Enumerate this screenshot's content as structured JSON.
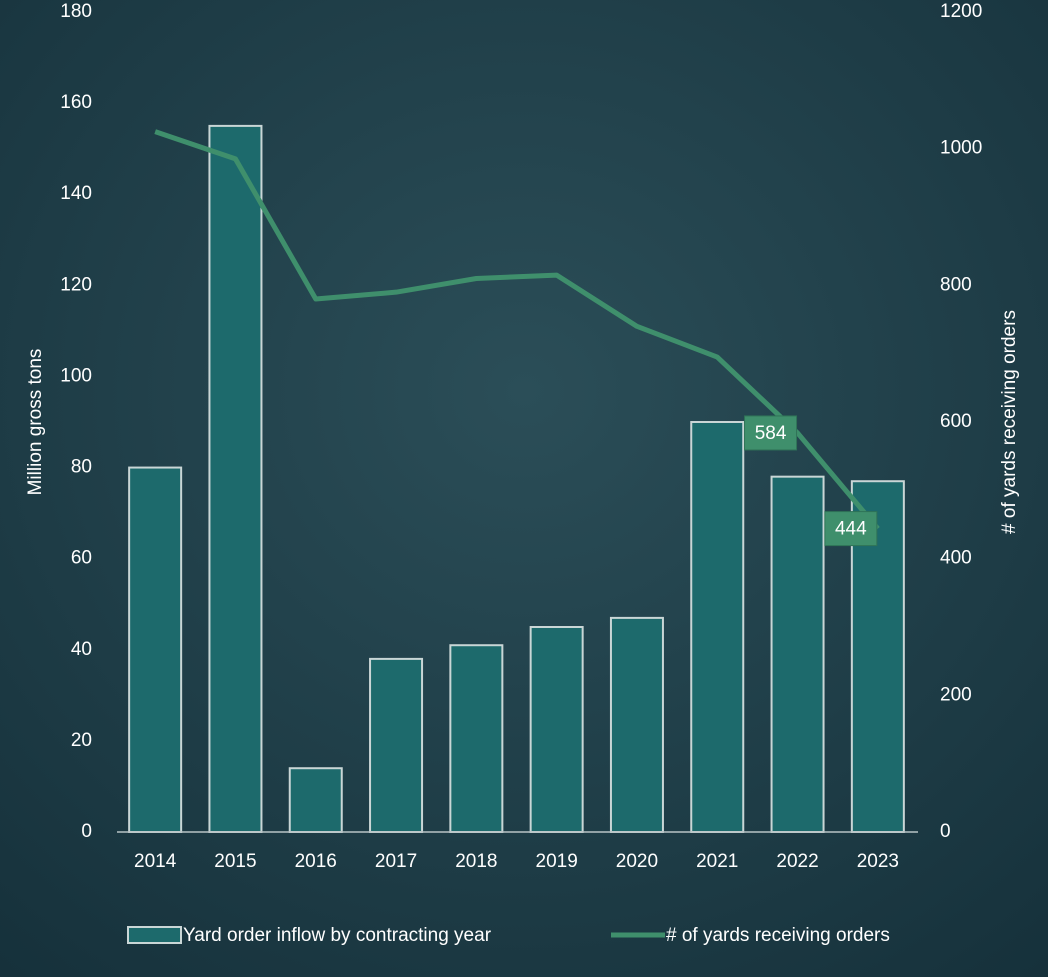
{
  "chart_data": {
    "type": "bar-line",
    "categories": [
      "2014",
      "2015",
      "2016",
      "2017",
      "2018",
      "2019",
      "2020",
      "2021",
      "2022",
      "2023"
    ],
    "ylabel": "Million gross tons",
    "y2label": "# of yards receiving orders",
    "ylim": [
      0,
      180
    ],
    "yticks": [
      0,
      20,
      40,
      60,
      80,
      100,
      120,
      140,
      160,
      180
    ],
    "y2lim": [
      0,
      1200
    ],
    "y2ticks": [
      0,
      200,
      400,
      600,
      800,
      1000,
      1200
    ],
    "legend": "bottom",
    "series": [
      {
        "name": "Yard order inflow by contracting year",
        "type": "bar",
        "color": "#1d6a6c",
        "values": [
          80,
          155,
          14,
          38,
          41,
          45,
          47,
          90,
          78,
          77
        ]
      },
      {
        "name": "# of yards receiving orders",
        "type": "line",
        "axis": "y2",
        "color": "#3f8f6c",
        "values": [
          1025,
          985,
          780,
          790,
          810,
          815,
          740,
          695,
          584,
          444
        ],
        "value_labels": [
          null,
          null,
          null,
          null,
          null,
          null,
          null,
          null,
          "584",
          "444"
        ]
      }
    ]
  }
}
